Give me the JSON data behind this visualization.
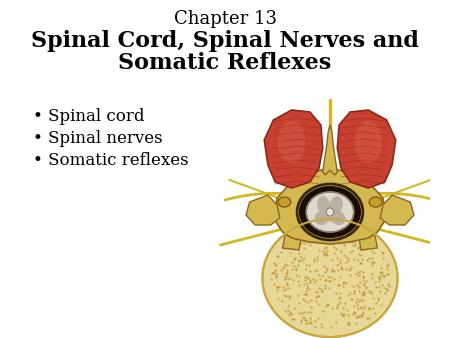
{
  "title_line1": "Chapter 13",
  "title_line2": "Spinal Cord, Spinal Nerves and",
  "title_line3": "Somatic Reflexes",
  "bullet_items": [
    "Spinal cord",
    "Spinal nerves",
    "Somatic reflexes"
  ],
  "background_color": "#ffffff",
  "title1_fontsize": 13,
  "title2_fontsize": 16,
  "bullet_fontsize": 12,
  "title_color": "#000000",
  "bullet_color": "#000000",
  "bone_body_color": "#e8d898",
  "bone_body_edge": "#c8a840",
  "bone_arch_color": "#d4b850",
  "bone_arch_edge": "#8a6820",
  "muscle_color": "#c84030",
  "muscle_light": "#d86050",
  "muscle_dark": "#8b2818",
  "nerve_color": "#d4b820",
  "nerve_dark": "#a08010",
  "canal_color": "#1a0e04",
  "cord_white": "#dedad0",
  "cord_grey": "#b8b0a0",
  "cord_center": "#e8e4dc",
  "stipple_color": "#b89030"
}
